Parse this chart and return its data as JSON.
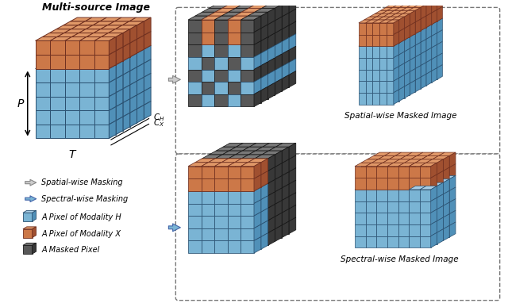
{
  "blue_face": "#7ab4d4",
  "blue_top": "#a8cce4",
  "blue_side": "#5090b8",
  "orange_face": "#cc7848",
  "orange_top": "#e09868",
  "orange_side": "#a05030",
  "dark_face": "#585858",
  "dark_top": "#787878",
  "dark_side": "#383838",
  "bg_color": "#ffffff",
  "lc_blue": "#2a5070",
  "lc_orange": "#703020",
  "lc_dark": "#181818",
  "title": "Multi-source Image",
  "label_P": "P",
  "label_T": "T",
  "label_CH": "$C_H$",
  "label_CX": "$C_X$",
  "spatial_label": "Spatial-wise Masked Image",
  "spectral_label": "Spectral-wise Masked Image"
}
